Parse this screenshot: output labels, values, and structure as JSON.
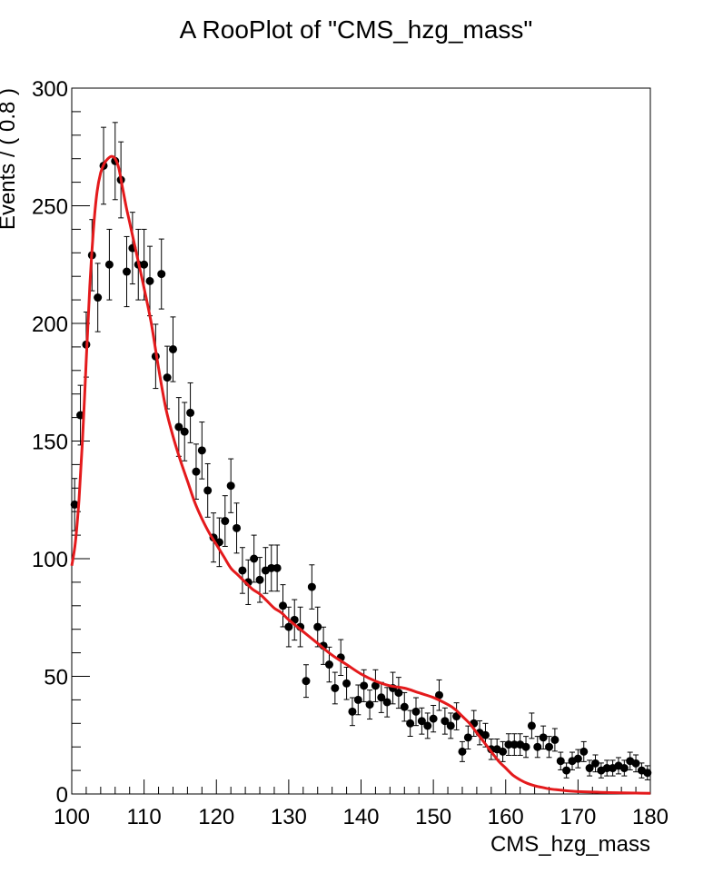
{
  "chart_data": {
    "type": "scatter",
    "title": "A RooPlot of \"CMS_hzg_mass\"",
    "xlabel": "CMS_hzg_mass",
    "ylabel": "Events / ( 0.8 )",
    "xlim": [
      100,
      180
    ],
    "ylim": [
      0,
      300
    ],
    "x_ticks": [
      100,
      110,
      120,
      130,
      140,
      150,
      160,
      170,
      180
    ],
    "y_ticks": [
      0,
      50,
      100,
      150,
      200,
      250,
      300
    ],
    "grid": false,
    "colors": {
      "data": "#000000",
      "fit": "#e41a1c"
    },
    "series": [
      {
        "type": "points_with_errors",
        "x": [
          100.4,
          101.2,
          102.0,
          102.8,
          103.6,
          104.4,
          105.2,
          106.0,
          106.8,
          107.6,
          108.4,
          109.2,
          110.0,
          110.8,
          111.6,
          112.4,
          113.2,
          114.0,
          114.8,
          115.6,
          116.4,
          117.2,
          118.0,
          118.8,
          119.6,
          120.4,
          121.2,
          122.0,
          122.8,
          123.6,
          124.4,
          125.2,
          126.0,
          126.8,
          127.6,
          128.4,
          129.2,
          130.0,
          130.8,
          131.6,
          132.4,
          133.2,
          134.0,
          134.8,
          135.6,
          136.4,
          137.2,
          138.0,
          138.8,
          139.6,
          140.4,
          141.2,
          142.0,
          142.8,
          143.6,
          144.4,
          145.2,
          146.0,
          146.8,
          147.6,
          148.4,
          149.2,
          150.0,
          150.8,
          151.6,
          152.4,
          153.2,
          154.0,
          154.8,
          155.6,
          156.4,
          157.2,
          158.0,
          158.8,
          159.6,
          160.4,
          161.2,
          162.0,
          162.8,
          163.6,
          164.4,
          165.2,
          166.0,
          166.8,
          167.6,
          168.4,
          169.2,
          170.0,
          170.8,
          171.6,
          172.4,
          173.2,
          174.0,
          174.8,
          175.6,
          176.4,
          177.2,
          178.0,
          178.8,
          179.6
        ],
        "y": [
          123,
          161,
          191,
          229,
          211,
          267,
          225,
          269,
          261,
          222,
          232,
          225,
          225,
          218,
          186,
          221,
          177,
          189,
          156,
          154,
          162,
          137,
          146,
          129,
          109,
          107,
          116,
          131,
          113,
          95,
          90,
          100,
          91,
          95,
          96,
          96,
          80,
          71,
          74,
          71,
          48,
          88,
          71,
          63,
          55,
          45,
          58,
          47,
          35,
          40,
          46,
          38,
          46,
          41,
          39,
          45,
          43,
          37,
          30,
          35,
          31,
          29,
          32,
          42,
          31,
          29,
          33,
          18,
          24,
          30,
          26,
          25,
          19,
          19,
          18,
          21,
          21,
          21,
          20,
          29,
          20,
          24,
          20,
          23,
          14,
          10,
          14,
          15,
          18,
          11,
          13,
          10,
          11,
          11,
          12,
          11,
          14,
          13,
          10,
          9
        ]
      },
      {
        "type": "curve",
        "x": [
          100.0,
          100.5,
          101.0,
          101.5,
          102.0,
          102.5,
          103.0,
          103.5,
          104.0,
          104.5,
          105.0,
          105.5,
          106.0,
          106.5,
          107.0,
          107.5,
          108.0,
          109.0,
          110.0,
          111.0,
          112.0,
          113.0,
          114.0,
          115.0,
          116.0,
          117.0,
          118.0,
          119.0,
          120.0,
          121.0,
          122.0,
          123.0,
          124.0,
          125.0,
          126.0,
          127.0,
          128.0,
          129.0,
          130.0,
          132.0,
          134.0,
          136.0,
          138.0,
          140.0,
          142.0,
          144.0,
          146.0,
          148.0,
          150.0,
          152.0,
          153.0,
          154.0,
          155.0,
          156.0,
          157.0,
          158.0,
          159.0,
          160.0,
          161.0,
          162.0,
          163.0,
          164.0,
          165.0,
          166.0,
          167.0,
          168.0,
          169.0,
          170.0,
          172.0,
          174.0,
          176.0,
          178.0,
          180.0
        ],
        "y": [
          97,
          107,
          125,
          151,
          184,
          216,
          240,
          256,
          264,
          268,
          270,
          271,
          270,
          266,
          258,
          250,
          243,
          229,
          215,
          200,
          181,
          164,
          152,
          142,
          133,
          124,
          117,
          111,
          106,
          101,
          96,
          93,
          90,
          87,
          85,
          82,
          79,
          77,
          74,
          69,
          64,
          59,
          55,
          51,
          48,
          46,
          45,
          43,
          41,
          38,
          36,
          33,
          30,
          26,
          22,
          18,
          14,
          11,
          8,
          6,
          4.5,
          3.5,
          2.8,
          2.2,
          1.8,
          1.5,
          1.2,
          1.0,
          0.8,
          0.6,
          0.5,
          0.4,
          0.3
        ]
      }
    ]
  }
}
